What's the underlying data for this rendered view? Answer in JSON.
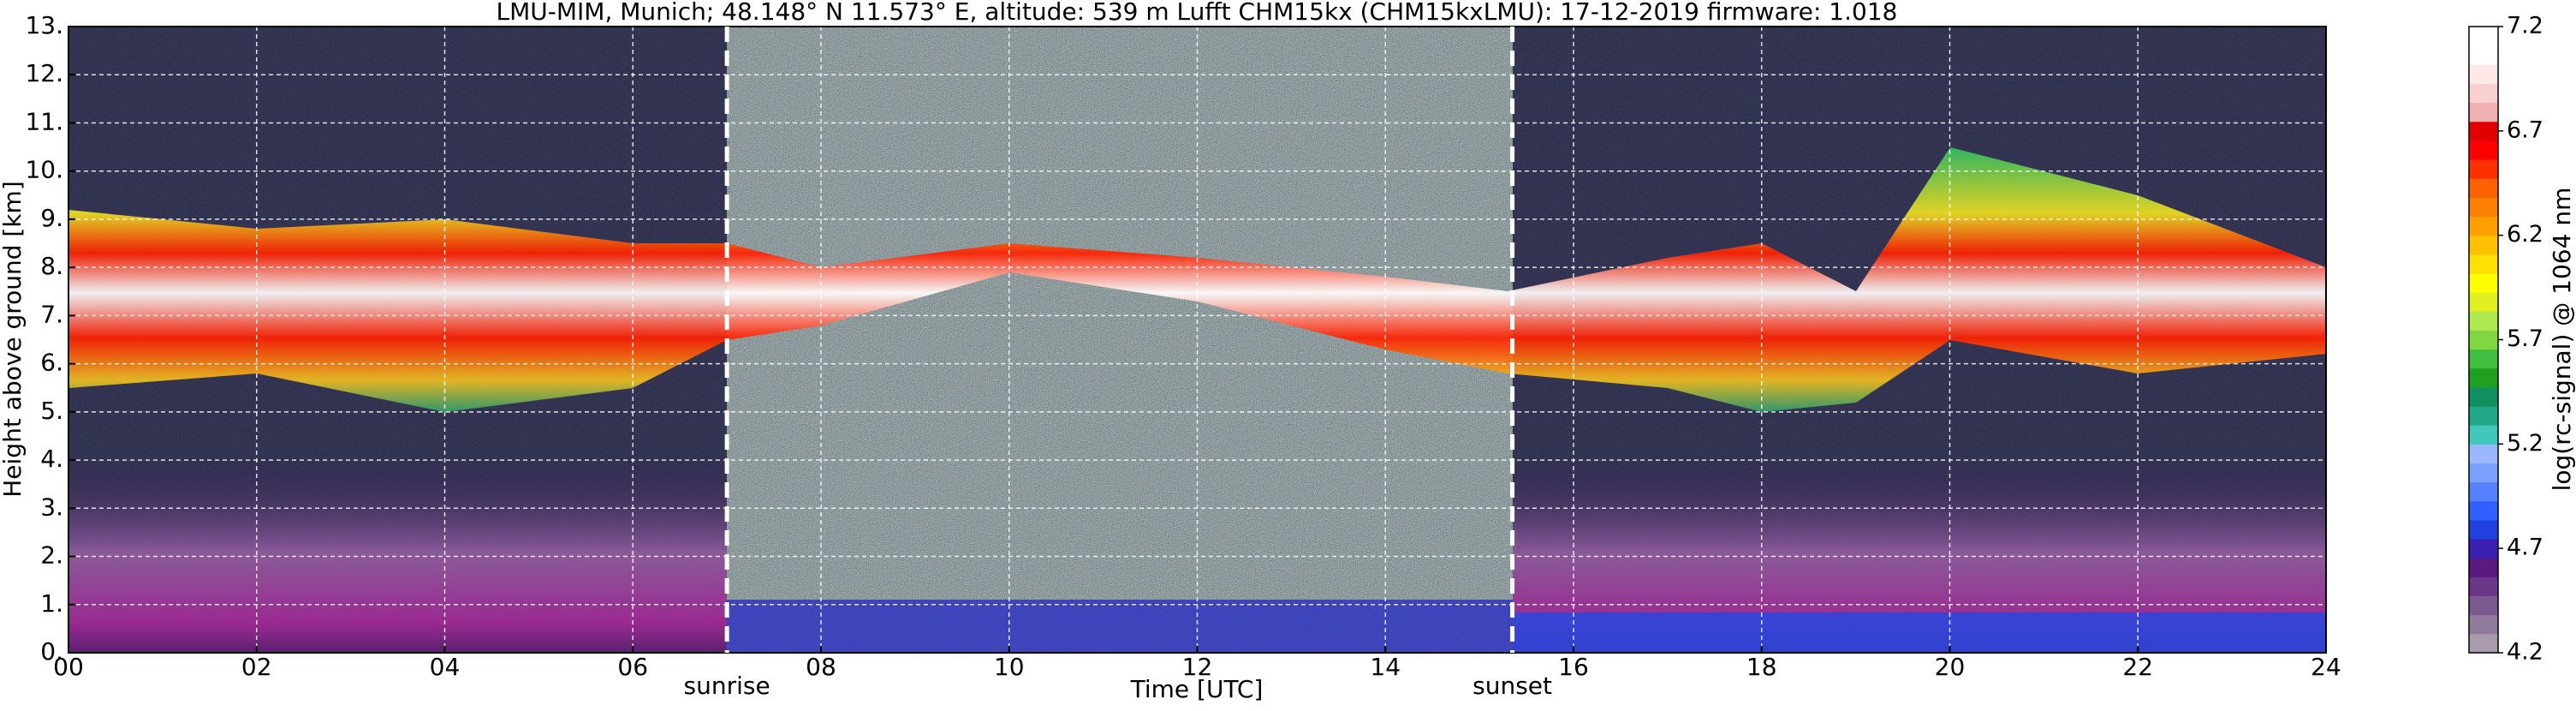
{
  "chart_data": {
    "type": "heatmap",
    "title": "LMU-MIM, Munich; 48.148° N 11.573° E, altitude: 539 m    Lufft CHM15kx (CHM15kxLMU): 17-12-2019    firmware: 1.018",
    "xlabel": "Time [UTC]",
    "ylabel": "Height above ground [km]",
    "xlim": [
      0,
      24
    ],
    "xticks": [
      {
        "value": 0,
        "label": "00"
      },
      {
        "value": 2,
        "label": "02"
      },
      {
        "value": 4,
        "label": "04"
      },
      {
        "value": 6,
        "label": "06"
      },
      {
        "value": 8,
        "label": "08"
      },
      10,
      12,
      14,
      16,
      18,
      20,
      22,
      24
    ],
    "ylim": [
      0,
      13
    ],
    "yticks": [
      {
        "value": 0,
        "label": "0."
      },
      {
        "value": 1,
        "label": "1."
      },
      {
        "value": 2,
        "label": "2."
      },
      {
        "value": 3,
        "label": "3."
      },
      {
        "value": 4,
        "label": "4."
      },
      {
        "value": 5,
        "label": "5."
      },
      {
        "value": 6,
        "label": "6."
      },
      {
        "value": 7,
        "label": "7."
      },
      {
        "value": 8,
        "label": "8."
      },
      {
        "value": 9,
        "label": "9."
      },
      {
        "value": 10,
        "label": "10."
      },
      {
        "value": 11,
        "label": "11."
      },
      {
        "value": 12,
        "label": "12."
      },
      {
        "value": 13,
        "label": "13."
      }
    ],
    "grid": true,
    "annotations": [
      {
        "text": "sunrise",
        "x": 7.0
      },
      {
        "text": "sunset",
        "x": 15.35
      }
    ],
    "colorbar_label": "log(rc-signal) @ 1064 nm",
    "clim": [
      4.2,
      7.2
    ],
    "cticks": [
      4.2,
      4.7,
      5.2,
      5.7,
      6.2,
      6.7,
      7.2
    ],
    "colormap": [
      "#a89cac",
      "#8f7a9c",
      "#7b5a90",
      "#6a3688",
      "#5a1a80",
      "#3a1fb0",
      "#2040e0",
      "#3060ff",
      "#5580ff",
      "#7aa0ff",
      "#9ab8ff",
      "#40c8b8",
      "#20a888",
      "#109060",
      "#20a020",
      "#40c040",
      "#80d840",
      "#b0e850",
      "#e0f020",
      "#ffff00",
      "#ffe000",
      "#ffc000",
      "#ffa000",
      "#ff8000",
      "#ff6000",
      "#ff3000",
      "#ff0000",
      "#e00000",
      "#f0b0b0",
      "#f8d0d0",
      "#ffe8e8",
      "#ffffff",
      "#ffffff"
    ]
  }
}
